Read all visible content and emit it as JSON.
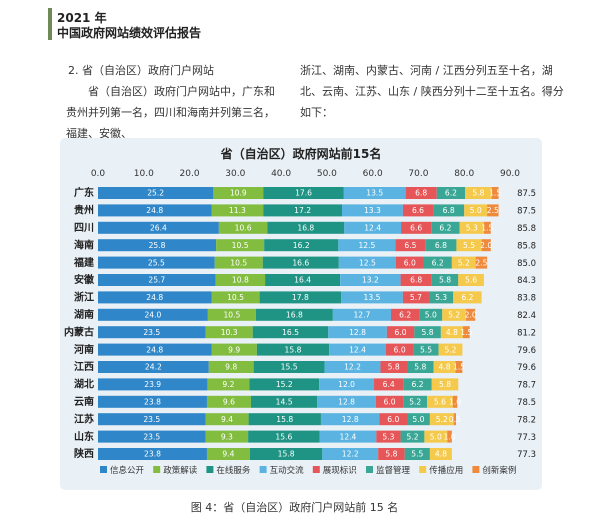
{
  "header": {
    "year": "2021 年",
    "title": "中国政府网站绩效评估报告"
  },
  "text": {
    "section_heading": "2. 省（自治区）政府门户网站",
    "left_paragraph": "省（自治区）政府门户网站中，广东和贵州并列第一名，四川和海南并列第三名，福建、安徽、",
    "right_paragraph": "浙江、湖南、内蒙古、河南 / 江西分列五至十名，湖北、云南、江苏、山东 / 陕西分列十二至十五名。得分如下："
  },
  "caption": "图 4：省（自治区）政府门户网站前 15 名",
  "chart_data": {
    "type": "bar",
    "orientation": "horizontal",
    "stacked": true,
    "title": "省（自治区）政府网站前15名",
    "xlim": [
      0,
      90
    ],
    "xticks": [
      "0.0",
      "10.0",
      "20.0",
      "30.0",
      "40.0",
      "50.0",
      "60.0",
      "70.0",
      "80.0",
      "90.0"
    ],
    "grid": false,
    "legend": "bottom",
    "categories": [
      "广东",
      "贵州",
      "四川",
      "海南",
      "福建",
      "安徽",
      "浙江",
      "湖南",
      "内蒙古",
      "河南",
      "江西",
      "湖北",
      "云南",
      "江苏",
      "山东",
      "陕西"
    ],
    "totals": [
      "87.5",
      "87.5",
      "85.8",
      "85.8",
      "85.0",
      "84.3",
      "83.8",
      "82.4",
      "81.2",
      "79.6",
      "79.6",
      "78.7",
      "78.5",
      "78.2",
      "77.3",
      "77.3"
    ],
    "series": [
      {
        "name": "信息公开",
        "color": "#2f86c8",
        "values": [
          25.2,
          24.8,
          26.4,
          25.8,
          25.5,
          25.7,
          24.8,
          24.0,
          23.5,
          24.8,
          24.2,
          23.9,
          23.8,
          23.5,
          23.5,
          23.8
        ]
      },
      {
        "name": "政策解读",
        "color": "#83bd3f",
        "values": [
          10.9,
          11.3,
          10.6,
          10.5,
          10.5,
          10.8,
          10.5,
          10.5,
          10.3,
          9.9,
          9.8,
          9.2,
          9.6,
          9.4,
          9.3,
          9.4
        ]
      },
      {
        "name": "在线服务",
        "color": "#1f9384",
        "values": [
          17.6,
          17.2,
          16.8,
          16.2,
          16.6,
          16.4,
          17.8,
          16.8,
          16.5,
          15.8,
          15.5,
          15.2,
          14.5,
          15.8,
          15.6,
          15.8
        ]
      },
      {
        "name": "互动交流",
        "color": "#5ab3e0",
        "values": [
          13.5,
          13.3,
          12.4,
          12.5,
          12.5,
          13.2,
          13.5,
          12.7,
          12.8,
          12.4,
          12.2,
          12.0,
          12.8,
          12.8,
          12.4,
          12.2
        ]
      },
      {
        "name": "展现标识",
        "color": "#e65557",
        "values": [
          6.8,
          6.6,
          6.6,
          6.5,
          6.0,
          6.8,
          5.7,
          6.2,
          6.0,
          6.0,
          5.8,
          6.4,
          6.0,
          6.0,
          5.3,
          5.8
        ]
      },
      {
        "name": "监督管理",
        "color": "#3aa796",
        "values": [
          6.2,
          6.8,
          6.2,
          6.8,
          6.2,
          5.8,
          5.3,
          5.0,
          5.8,
          5.5,
          5.8,
          6.2,
          5.2,
          5.0,
          5.2,
          5.5
        ]
      },
      {
        "name": "传播应用",
        "color": "#f5c94b",
        "values": [
          5.8,
          5.0,
          5.3,
          5.5,
          5.2,
          5.6,
          6.2,
          5.2,
          4.8,
          5.2,
          4.8,
          5.8,
          5.6,
          5.2,
          5.0,
          4.8
        ]
      },
      {
        "name": "创新案例",
        "color": "#ef8a3c",
        "values": [
          1.5,
          2.5,
          1.5,
          2.0,
          2.5,
          0,
          0,
          2.0,
          1.5,
          0,
          1.5,
          0,
          1.0,
          0.5,
          1.0,
          0
        ]
      }
    ]
  }
}
